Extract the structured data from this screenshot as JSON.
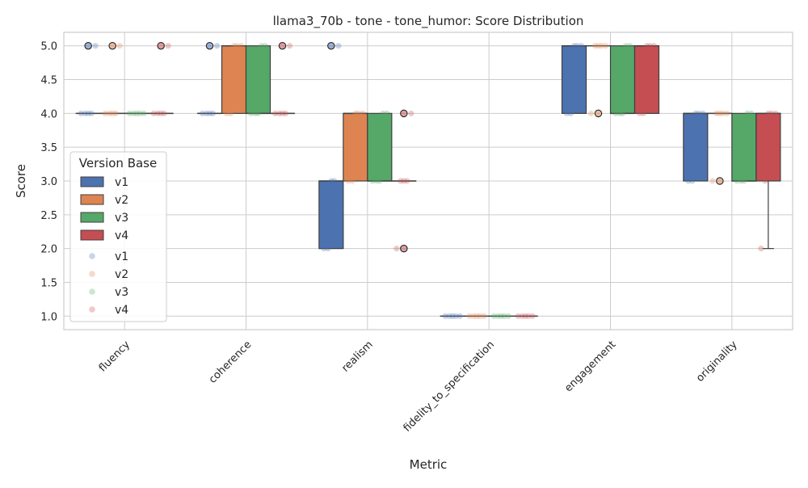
{
  "chart_data": {
    "type": "box",
    "title": "llama3_70b - tone - tone_humor: Score Distribution",
    "xlabel": "Metric",
    "ylabel": "Score",
    "categories": [
      "fluency",
      "coherence",
      "realism",
      "fidelity_to_specification",
      "engagement",
      "originality"
    ],
    "y_ticks": [
      "1.0",
      "1.5",
      "2.0",
      "2.5",
      "3.0",
      "3.5",
      "4.0",
      "4.5",
      "5.0"
    ],
    "ylim": [
      0.8,
      5.2
    ],
    "grid": true,
    "legend": {
      "title": "Version Base",
      "position": "center-left",
      "box_entries": [
        "v1",
        "v2",
        "v3",
        "v4"
      ],
      "point_entries": [
        "v1",
        "v2",
        "v3",
        "v4"
      ]
    },
    "colors": {
      "v1": "#4c72b0",
      "v2": "#dd8452",
      "v3": "#55a868",
      "v4": "#c44e52"
    },
    "series": [
      {
        "name": "v1",
        "boxes": [
          {
            "q1": 4,
            "median": 4,
            "q3": 4,
            "whislo": 4,
            "whishi": 4,
            "fliers": [
              5
            ],
            "points": [
              4,
              4,
              4,
              4,
              5
            ]
          },
          {
            "q1": 4,
            "median": 4,
            "q3": 4,
            "whislo": 4,
            "whishi": 4,
            "fliers": [
              5
            ],
            "points": [
              4,
              4,
              4,
              4,
              5
            ]
          },
          {
            "q1": 2,
            "median": 3,
            "q3": 3,
            "whislo": 2,
            "whishi": 3,
            "fliers": [
              5
            ],
            "points": [
              2,
              2,
              3,
              3,
              5
            ]
          },
          {
            "q1": 1,
            "median": 1,
            "q3": 1,
            "whislo": 1,
            "whishi": 1,
            "fliers": [],
            "points": [
              1,
              1,
              1,
              1,
              1
            ]
          },
          {
            "q1": 4,
            "median": 5,
            "q3": 5,
            "whislo": 4,
            "whishi": 5,
            "fliers": [],
            "points": [
              4,
              4,
              5,
              5,
              5
            ]
          },
          {
            "q1": 3,
            "median": 4,
            "q3": 4,
            "whislo": 3,
            "whishi": 4,
            "fliers": [],
            "points": [
              3,
              3,
              4,
              4,
              4
            ]
          }
        ]
      },
      {
        "name": "v2",
        "boxes": [
          {
            "q1": 4,
            "median": 4,
            "q3": 4,
            "whislo": 4,
            "whishi": 4,
            "fliers": [
              5
            ],
            "points": [
              4,
              4,
              4,
              4,
              5
            ]
          },
          {
            "q1": 4,
            "median": 5,
            "q3": 5,
            "whislo": 4,
            "whishi": 5,
            "fliers": [],
            "points": [
              4,
              4,
              5,
              5,
              5
            ]
          },
          {
            "q1": 3,
            "median": 4,
            "q3": 4,
            "whislo": 3,
            "whishi": 4,
            "fliers": [],
            "points": [
              3,
              3,
              4,
              4,
              4
            ]
          },
          {
            "q1": 1,
            "median": 1,
            "q3": 1,
            "whislo": 1,
            "whishi": 1,
            "fliers": [],
            "points": [
              1,
              1,
              1,
              1,
              1
            ]
          },
          {
            "q1": 5,
            "median": 5,
            "q3": 5,
            "whislo": 5,
            "whishi": 5,
            "fliers": [
              4
            ],
            "points": [
              4,
              5,
              5,
              5,
              5
            ]
          },
          {
            "q1": 4,
            "median": 4,
            "q3": 4,
            "whislo": 4,
            "whishi": 4,
            "fliers": [
              3
            ],
            "points": [
              3,
              4,
              4,
              4,
              4
            ]
          }
        ]
      },
      {
        "name": "v3",
        "boxes": [
          {
            "q1": 4,
            "median": 4,
            "q3": 4,
            "whislo": 4,
            "whishi": 4,
            "fliers": [],
            "points": [
              4,
              4,
              4,
              4,
              4
            ]
          },
          {
            "q1": 4,
            "median": 4,
            "q3": 5,
            "whislo": 4,
            "whishi": 5,
            "fliers": [],
            "points": [
              4,
              4,
              4,
              5,
              5
            ]
          },
          {
            "q1": 3,
            "median": 3,
            "q3": 4,
            "whislo": 3,
            "whishi": 4,
            "fliers": [],
            "points": [
              3,
              3,
              3,
              4,
              4
            ]
          },
          {
            "q1": 1,
            "median": 1,
            "q3": 1,
            "whislo": 1,
            "whishi": 1,
            "fliers": [],
            "points": [
              1,
              1,
              1,
              1,
              1
            ]
          },
          {
            "q1": 4,
            "median": 4,
            "q3": 5,
            "whislo": 4,
            "whishi": 5,
            "fliers": [],
            "points": [
              4,
              4,
              4,
              5,
              5
            ]
          },
          {
            "q1": 3,
            "median": 3,
            "q3": 4,
            "whislo": 3,
            "whishi": 4,
            "fliers": [],
            "points": [
              3,
              3,
              3,
              4,
              4
            ]
          }
        ]
      },
      {
        "name": "v4",
        "boxes": [
          {
            "q1": 4,
            "median": 4,
            "q3": 4,
            "whislo": 4,
            "whishi": 4,
            "fliers": [
              5
            ],
            "points": [
              4,
              4,
              4,
              4,
              5
            ]
          },
          {
            "q1": 4,
            "median": 4,
            "q3": 4,
            "whislo": 4,
            "whishi": 4,
            "fliers": [
              5
            ],
            "points": [
              4,
              4,
              4,
              4,
              5
            ]
          },
          {
            "q1": 3,
            "median": 3,
            "q3": 3,
            "whislo": 3,
            "whishi": 3,
            "fliers": [
              2,
              4
            ],
            "points": [
              2,
              3,
              3,
              3,
              4
            ]
          },
          {
            "q1": 1,
            "median": 1,
            "q3": 1,
            "whislo": 1,
            "whishi": 1,
            "fliers": [],
            "points": [
              1,
              1,
              1,
              1,
              1
            ]
          },
          {
            "q1": 4,
            "median": 5,
            "q3": 5,
            "whislo": 4,
            "whishi": 5,
            "fliers": [],
            "points": [
              4,
              4,
              5,
              5,
              5
            ]
          },
          {
            "q1": 3,
            "median": 4,
            "q3": 4,
            "whislo": 2,
            "whishi": 4,
            "fliers": [],
            "points": [
              2,
              3,
              4,
              4,
              4
            ]
          }
        ]
      }
    ]
  }
}
